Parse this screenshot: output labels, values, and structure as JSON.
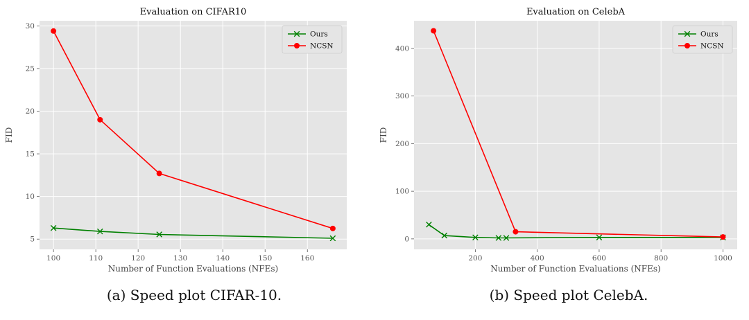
{
  "captions": [
    "(a) Speed plot CIFAR-10.",
    "(b) Speed plot CelebA."
  ],
  "chart_data": [
    {
      "type": "line",
      "title": "Evaluation on CIFAR10",
      "xlabel": "Number of Function Evaluations (NFEs)",
      "ylabel": "FID",
      "xlim": [
        96.7,
        169.3
      ],
      "ylim": [
        3.8,
        30.6
      ],
      "xticks": [
        100,
        110,
        120,
        130,
        140,
        150,
        160
      ],
      "yticks": [
        5,
        10,
        15,
        20,
        25,
        30
      ],
      "grid": true,
      "legend_position": "top-right",
      "series": [
        {
          "name": "Ours",
          "color": "#008000",
          "marker": "x",
          "x": [
            100,
            111,
            125,
            166
          ],
          "y": [
            6.3,
            5.9,
            5.55,
            5.1
          ]
        },
        {
          "name": "NCSN",
          "color": "#ff0000",
          "marker": "o",
          "x": [
            100,
            111,
            125,
            166
          ],
          "y": [
            29.4,
            19.0,
            12.7,
            6.25
          ]
        }
      ]
    },
    {
      "type": "line",
      "title": "Evaluation on CelebA",
      "xlabel": "Number of Function Evaluations (NFEs)",
      "ylabel": "FID",
      "xlim": [
        2,
        1046
      ],
      "ylim": [
        -22,
        458
      ],
      "xticks": [
        200,
        400,
        600,
        800,
        1000
      ],
      "yticks": [
        0,
        100,
        200,
        300,
        400
      ],
      "grid": true,
      "legend_position": "top-right",
      "series": [
        {
          "name": "Ours",
          "color": "#008000",
          "marker": "x",
          "x": [
            50,
            100,
            200,
            275,
            300,
            600,
            1000
          ],
          "y": [
            30,
            7,
            3,
            2,
            2,
            3,
            3
          ]
        },
        {
          "name": "NCSN",
          "color": "#ff0000",
          "marker": "o",
          "x": [
            65,
            330,
            1000
          ],
          "y": [
            437,
            15,
            4
          ]
        }
      ]
    }
  ]
}
